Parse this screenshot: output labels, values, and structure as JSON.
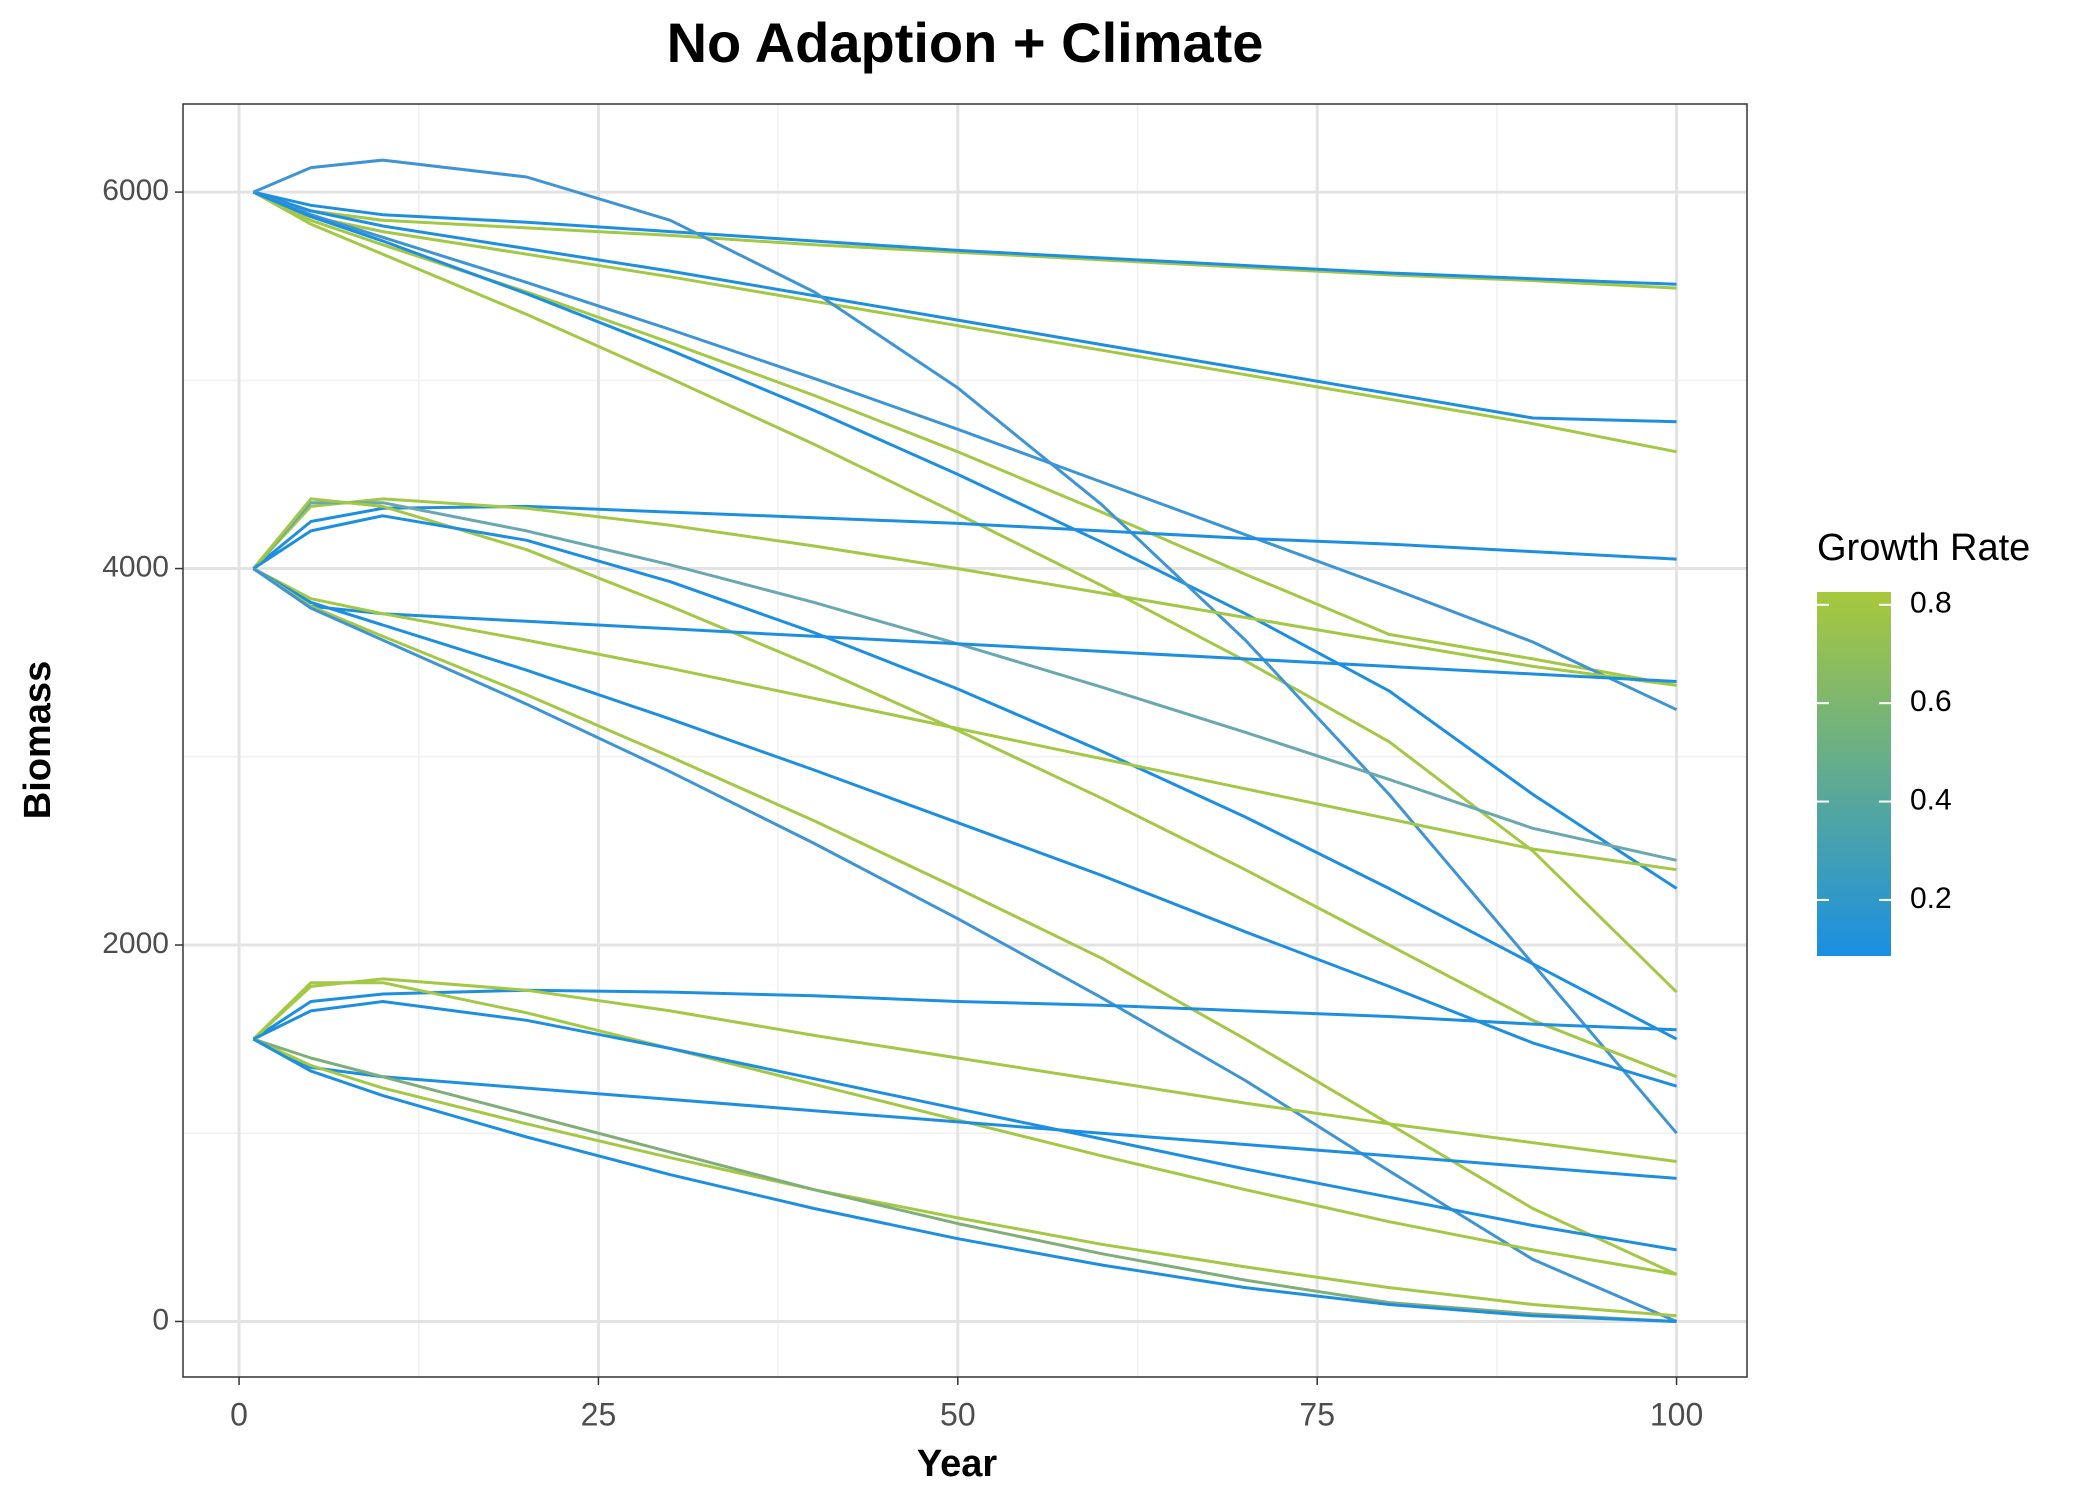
{
  "chart_data": {
    "type": "line",
    "title": "No Adaption + Climate",
    "x_label": "Year",
    "y_label": "Biomass",
    "xlim": [
      -3.9,
      104.9
    ],
    "ylim": [
      -295,
      6468
    ],
    "xticks": [
      0,
      25,
      50,
      75,
      100
    ],
    "yticks": [
      0,
      2000,
      4000,
      6000
    ],
    "grid": true,
    "minor_grid": true,
    "x": [
      1,
      5,
      10,
      20,
      30,
      40,
      50,
      60,
      70,
      80,
      90,
      100
    ],
    "colorbar": {
      "title": "Growth Rate",
      "lim": [
        0.086,
        0.826
      ],
      "ticks": [
        0.2,
        0.4,
        0.6,
        0.8
      ],
      "colors": [
        "#1a8fe3",
        "#a8c83c"
      ]
    },
    "series": [
      {
        "color": "#a3c845",
        "values": [
          6000,
          5900,
          5850,
          5810,
          5770,
          5720,
          5680,
          5640,
          5600,
          5560,
          5530,
          5490
        ]
      },
      {
        "color": "#1e8fe0",
        "values": [
          6000,
          5930,
          5880,
          5840,
          5790,
          5740,
          5690,
          5650,
          5610,
          5570,
          5540,
          5510
        ]
      },
      {
        "color": "#a3c845",
        "values": [
          6000,
          5870,
          5790,
          5670,
          5550,
          5420,
          5290,
          5160,
          5030,
          4900,
          4770,
          4620
        ]
      },
      {
        "color": "#1e8fe0",
        "values": [
          6000,
          5900,
          5820,
          5700,
          5580,
          5450,
          5320,
          5190,
          5060,
          4930,
          4800,
          4780
        ]
      },
      {
        "color": "#a3c845",
        "values": [
          6000,
          5850,
          5720,
          5470,
          5200,
          4920,
          4620,
          4300,
          3970,
          3650,
          3520,
          3380
        ]
      },
      {
        "color": "#3f94d4",
        "values": [
          6000,
          5880,
          5760,
          5520,
          5270,
          5010,
          4740,
          4460,
          4180,
          3900,
          3610,
          3250
        ]
      },
      {
        "color": "#a3c845",
        "values": [
          6000,
          5830,
          5670,
          5350,
          5010,
          4660,
          4290,
          3910,
          3510,
          3080,
          2500,
          1750
        ]
      },
      {
        "color": "#1e8fe0",
        "values": [
          6000,
          5870,
          5740,
          5460,
          5160,
          4840,
          4500,
          4140,
          3760,
          3350,
          2800,
          2300
        ]
      },
      {
        "color": "#3f94d4",
        "values": [
          6000,
          6130,
          6170,
          6080,
          5850,
          5470,
          4960,
          4340,
          3620,
          2800,
          1900,
          1000
        ]
      },
      {
        "color": "#1e8fe0",
        "values": [
          4000,
          4250,
          4320,
          4330,
          4300,
          4270,
          4240,
          4200,
          4160,
          4130,
          4090,
          4050
        ]
      },
      {
        "color": "#a3c845",
        "values": [
          4000,
          4330,
          4370,
          4320,
          4230,
          4120,
          4000,
          3870,
          3740,
          3610,
          3480,
          3380
        ]
      },
      {
        "color": "#6aa8b0",
        "values": [
          4000,
          4350,
          4350,
          4200,
          4020,
          3820,
          3600,
          3370,
          3130,
          2880,
          2620,
          2450
        ]
      },
      {
        "color": "#a3c845",
        "values": [
          4000,
          4370,
          4330,
          4100,
          3800,
          3480,
          3140,
          2780,
          2400,
          2000,
          1600,
          1300
        ]
      },
      {
        "color": "#1e8fe0",
        "values": [
          4000,
          4200,
          4280,
          4150,
          3930,
          3660,
          3360,
          3030,
          2680,
          2300,
          1900,
          1500
        ]
      },
      {
        "color": "#1e8fe0",
        "values": [
          4000,
          3800,
          3760,
          3720,
          3680,
          3640,
          3600,
          3560,
          3520,
          3480,
          3440,
          3400
        ]
      },
      {
        "color": "#a3c845",
        "values": [
          4000,
          3840,
          3760,
          3620,
          3470,
          3310,
          3150,
          2990,
          2830,
          2670,
          2510,
          2400
        ]
      },
      {
        "color": "#1e8fe0",
        "values": [
          4000,
          3820,
          3700,
          3460,
          3200,
          2930,
          2650,
          2370,
          2070,
          1780,
          1480,
          1250
        ]
      },
      {
        "color": "#a3c845",
        "values": [
          4000,
          3800,
          3640,
          3330,
          3000,
          2660,
          2300,
          1930,
          1500,
          1050,
          600,
          250
        ]
      },
      {
        "color": "#3f94d4",
        "values": [
          4000,
          3790,
          3620,
          3280,
          2920,
          2540,
          2140,
          1720,
          1280,
          800,
          330,
          0
        ]
      },
      {
        "color": "#1e8fe0",
        "values": [
          1500,
          1700,
          1740,
          1760,
          1750,
          1730,
          1700,
          1680,
          1650,
          1620,
          1580,
          1550
        ]
      },
      {
        "color": "#a3c845",
        "values": [
          1500,
          1780,
          1820,
          1760,
          1650,
          1520,
          1400,
          1280,
          1160,
          1050,
          950,
          850
        ]
      },
      {
        "color": "#a3c845",
        "values": [
          1500,
          1800,
          1800,
          1640,
          1450,
          1260,
          1070,
          880,
          700,
          530,
          380,
          250
        ]
      },
      {
        "color": "#1e8fe0",
        "values": [
          1500,
          1650,
          1700,
          1600,
          1450,
          1290,
          1130,
          970,
          810,
          660,
          510,
          380
        ]
      },
      {
        "color": "#1e8fe0",
        "values": [
          1500,
          1350,
          1300,
          1240,
          1180,
          1120,
          1060,
          1000,
          940,
          880,
          820,
          760
        ]
      },
      {
        "color": "#a3c845",
        "values": [
          1500,
          1360,
          1240,
          1050,
          870,
          700,
          550,
          410,
          290,
          180,
          90,
          30
        ]
      },
      {
        "color": "#7fae78",
        "values": [
          1500,
          1400,
          1300,
          1100,
          900,
          700,
          520,
          360,
          220,
          100,
          40,
          0
        ]
      },
      {
        "color": "#1e8fe0",
        "values": [
          1500,
          1330,
          1200,
          980,
          780,
          600,
          440,
          300,
          180,
          90,
          30,
          0
        ]
      }
    ]
  }
}
